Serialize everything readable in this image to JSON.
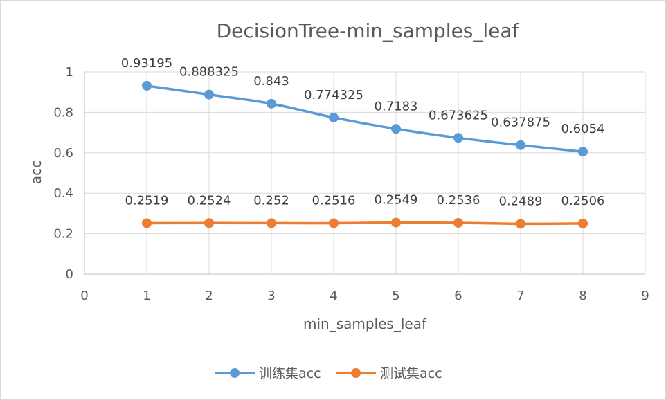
{
  "chart_data": {
    "type": "line",
    "title": "DecisionTree-min_samples_leaf",
    "xlabel": "min_samples_leaf",
    "ylabel": "acc",
    "xlim": [
      0,
      9
    ],
    "ylim": [
      0,
      1
    ],
    "x_ticks": [
      "0",
      "1",
      "2",
      "3",
      "4",
      "5",
      "6",
      "7",
      "8",
      "9"
    ],
    "y_ticks": [
      "0",
      "0.2",
      "0.4",
      "0.6",
      "0.8",
      "1"
    ],
    "x": [
      1,
      2,
      3,
      4,
      5,
      6,
      7,
      8
    ],
    "grid": true,
    "legend_position": "bottom",
    "series": [
      {
        "name": "训练集acc",
        "color": "#5b9bd5",
        "values": [
          0.93195,
          0.888325,
          0.843,
          0.774325,
          0.7183,
          0.673625,
          0.637875,
          0.6054
        ],
        "labels": [
          "0.93195",
          "0.888325",
          "0.843",
          "0.774325",
          "0.7183",
          "0.673625",
          "0.637875",
          "0.6054"
        ]
      },
      {
        "name": "测试集acc",
        "color": "#ed7d31",
        "values": [
          0.2519,
          0.2524,
          0.252,
          0.2516,
          0.2549,
          0.2536,
          0.2489,
          0.2506
        ],
        "labels": [
          "0.2519",
          "0.2524",
          "0.252",
          "0.2516",
          "0.2549",
          "0.2536",
          "0.2489",
          "0.2506"
        ]
      }
    ]
  }
}
